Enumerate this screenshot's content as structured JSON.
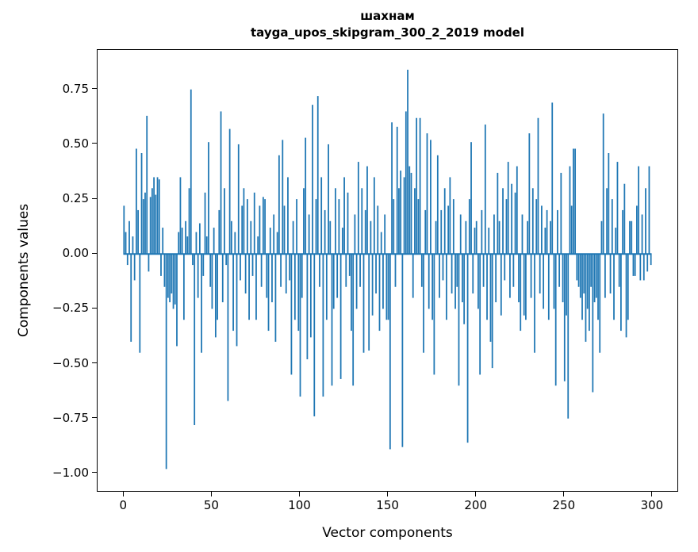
{
  "figure": {
    "title_line1": "шахнам",
    "title_line2": "tayga_upos_skipgram_300_2_2019 model",
    "xlabel": "Vector components",
    "ylabel": "Components values"
  },
  "chart_data": {
    "type": "bar",
    "title": "шахнам",
    "subtitle": "tayga_upos_skipgram_300_2_2019 model",
    "xlabel": "Vector components",
    "ylabel": "Components values",
    "bar_color": "#1f77b4",
    "n_bars": 300,
    "bar_width": 0.8,
    "grid": false,
    "legend": false,
    "xlim": [
      -15,
      314
    ],
    "ylim": [
      -1.08,
      0.93
    ],
    "x_ticks": [
      0,
      50,
      100,
      150,
      200,
      250,
      300
    ],
    "x_tick_labels": [
      "0",
      "50",
      "100",
      "150",
      "200",
      "250",
      "300"
    ],
    "y_ticks": [
      0.75,
      0.5,
      0.25,
      0.0,
      -0.25,
      -0.5,
      -0.75,
      -1.0
    ],
    "y_tick_labels": [
      "0.75",
      "0.50",
      "0.25",
      "0.00",
      "−0.25",
      "−0.50",
      "−0.75",
      "−1.00"
    ],
    "values": [
      0.22,
      0.1,
      -0.05,
      0.15,
      -0.4,
      0.08,
      -0.12,
      0.48,
      0.2,
      -0.45,
      0.46,
      0.25,
      0.28,
      0.63,
      -0.08,
      0.26,
      0.3,
      0.35,
      0.27,
      0.35,
      0.34,
      -0.1,
      0.12,
      -0.15,
      -0.98,
      -0.2,
      -0.22,
      -0.18,
      -0.25,
      -0.23,
      -0.42,
      0.1,
      0.35,
      0.12,
      -0.3,
      0.15,
      0.08,
      0.3,
      0.75,
      -0.05,
      -0.78,
      0.1,
      -0.2,
      0.14,
      -0.45,
      -0.1,
      0.28,
      0.08,
      0.51,
      -0.15,
      -0.25,
      0.12,
      -0.38,
      -0.3,
      0.2,
      0.65,
      -0.22,
      0.3,
      -0.05,
      -0.67,
      0.57,
      0.15,
      -0.35,
      0.1,
      -0.42,
      0.5,
      -0.12,
      0.22,
      0.3,
      -0.18,
      0.25,
      -0.3,
      0.15,
      -0.1,
      0.28,
      -0.3,
      0.08,
      0.22,
      -0.15,
      0.26,
      0.25,
      -0.2,
      -0.35,
      0.12,
      -0.22,
      0.18,
      -0.4,
      0.1,
      0.45,
      -0.15,
      0.52,
      0.22,
      -0.18,
      0.35,
      -0.12,
      -0.55,
      0.15,
      -0.3,
      0.25,
      -0.35,
      -0.65,
      -0.2,
      0.3,
      0.53,
      -0.48,
      0.18,
      -0.38,
      0.68,
      -0.74,
      0.25,
      0.72,
      -0.15,
      0.35,
      -0.65,
      0.2,
      -0.3,
      0.5,
      0.15,
      -0.6,
      -0.25,
      0.3,
      -0.2,
      0.25,
      -0.57,
      0.12,
      0.35,
      -0.15,
      0.28,
      -0.1,
      -0.35,
      -0.6,
      0.18,
      -0.25,
      0.42,
      -0.15,
      0.3,
      -0.45,
      0.2,
      0.4,
      -0.44,
      0.15,
      -0.28,
      0.35,
      -0.18,
      0.22,
      -0.35,
      0.1,
      -0.25,
      0.18,
      -0.3,
      -0.3,
      -0.89,
      0.6,
      0.25,
      -0.15,
      0.58,
      0.3,
      0.38,
      -0.88,
      0.35,
      0.65,
      0.84,
      0.4,
      0.37,
      -0.2,
      0.3,
      0.62,
      0.25,
      0.62,
      -0.15,
      -0.45,
      0.2,
      0.55,
      -0.25,
      0.52,
      -0.3,
      -0.55,
      0.15,
      0.45,
      -0.2,
      0.2,
      -0.12,
      0.3,
      -0.3,
      0.22,
      0.35,
      -0.18,
      0.25,
      -0.25,
      -0.15,
      -0.6,
      0.18,
      -0.22,
      -0.32,
      0.15,
      -0.86,
      0.25,
      0.51,
      -0.18,
      0.12,
      0.15,
      -0.25,
      -0.55,
      0.2,
      -0.15,
      0.59,
      -0.3,
      0.12,
      -0.4,
      -0.52,
      0.18,
      -0.22,
      0.37,
      0.15,
      -0.28,
      0.3,
      -0.12,
      0.25,
      0.42,
      -0.2,
      0.32,
      -0.15,
      0.28,
      0.4,
      -0.22,
      -0.35,
      0.18,
      -0.28,
      -0.3,
      0.15,
      0.55,
      -0.2,
      0.3,
      -0.45,
      0.25,
      0.62,
      -0.18,
      0.22,
      -0.25,
      0.12,
      0.2,
      -0.3,
      0.15,
      0.69,
      -0.25,
      -0.6,
      0.2,
      -0.15,
      0.37,
      -0.22,
      -0.58,
      -0.28,
      -0.75,
      0.4,
      0.22,
      0.48,
      0.48,
      -0.12,
      -0.15,
      -0.2,
      -0.3,
      -0.18,
      -0.4,
      -0.25,
      -0.35,
      -0.15,
      -0.63,
      -0.22,
      -0.2,
      -0.3,
      -0.45,
      0.15,
      0.64,
      -0.2,
      0.3,
      0.46,
      -0.18,
      0.25,
      -0.3,
      0.12,
      0.42,
      -0.15,
      -0.35,
      0.2,
      0.32,
      -0.38,
      -0.3,
      0.15,
      0.15,
      -0.1,
      -0.1,
      0.22,
      0.4,
      -0.12,
      0.18,
      -0.12,
      0.3,
      -0.08,
      0.4,
      -0.05
    ]
  }
}
